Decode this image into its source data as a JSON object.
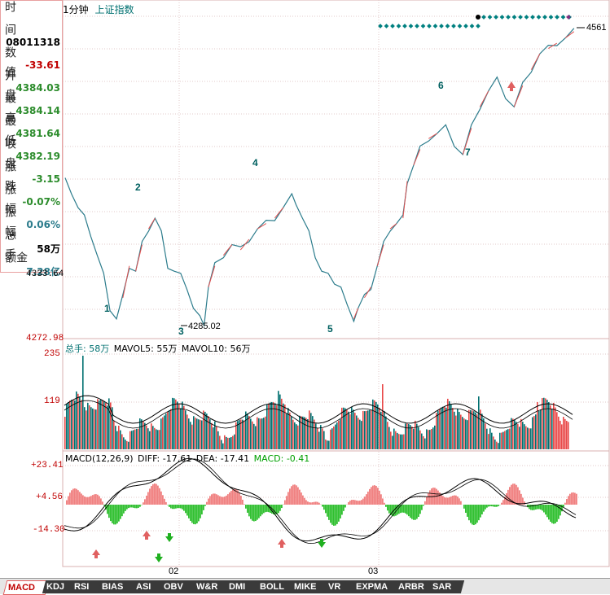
{
  "title": {
    "interval": "1分钟",
    "index_name": "上证指数"
  },
  "info_panel": {
    "rows": [
      {
        "label": "时",
        "value": ""
      },
      {
        "label": "间",
        "value": "08011318"
      },
      {
        "label": "数值",
        "value": "-33.61"
      },
      {
        "label": "开盘",
        "value": "4384.03"
      },
      {
        "label": "最高",
        "value": "4384.14"
      },
      {
        "label": "最低",
        "value": "4381.64"
      },
      {
        "label": "收盘",
        "value": "4382.19"
      },
      {
        "label": "涨跌",
        "value": "-3.15"
      },
      {
        "label": "涨幅",
        "value": "-0.07%"
      },
      {
        "label": "振幅",
        "value": "0.06%"
      },
      {
        "label": "总手",
        "value": "58万"
      },
      {
        "label": "金额",
        "value": "7.28亿"
      }
    ]
  },
  "price_axis": {
    "labels": [
      "4333.64",
      "4272.98"
    ],
    "low_label": "4285.02",
    "high_label": "4561"
  },
  "wave_labels": [
    "1",
    "2",
    "3",
    "4",
    "5",
    "6",
    "7"
  ],
  "volume_header": {
    "total": "总手: 58万",
    "mavol5": "MAVOL5: 55万",
    "mavol10": "MAVOL10: 56万"
  },
  "volume_axis": [
    "235",
    "119"
  ],
  "macd_header": {
    "name": "MACD(12,26,9)",
    "diff": "DIFF: -17.61",
    "dea": "DEA: -17.41",
    "macd": "MACD: -0.41"
  },
  "macd_axis": [
    "+23.41",
    "+4.56",
    "-14.30"
  ],
  "date_labels": [
    "02",
    "03"
  ],
  "tabs": [
    "MACD",
    "KDJ",
    "RSI",
    "BIAS",
    "ASI",
    "OBV",
    "W&R",
    "DMI",
    "BOLL",
    "MIKE",
    "VR",
    "EXPMA",
    "ARBR",
    "SAR"
  ],
  "colors": {
    "up": "#e84848",
    "down": "#007070",
    "price_line": "#2c7c8c",
    "grid": "#d8b0b0",
    "macd_up": "#f08080",
    "macd_down": "#30c030"
  },
  "chart_data": {
    "type": "line",
    "title": "上证指数 1分钟",
    "price_series": [
      [
        0,
        4420
      ],
      [
        3,
        4410
      ],
      [
        6,
        4395
      ],
      [
        9,
        4385
      ],
      [
        12,
        4370
      ],
      [
        15,
        4350
      ],
      [
        18,
        4330
      ],
      [
        21,
        4300
      ],
      [
        24,
        4290
      ],
      [
        27,
        4310
      ],
      [
        30,
        4340
      ],
      [
        33,
        4335
      ],
      [
        36,
        4360
      ],
      [
        39,
        4375
      ],
      [
        42,
        4385
      ],
      [
        45,
        4370
      ],
      [
        48,
        4340
      ],
      [
        51,
        4335
      ],
      [
        54,
        4330
      ],
      [
        57,
        4320
      ],
      [
        60,
        4300
      ],
      [
        63,
        4290
      ],
      [
        65,
        4286
      ],
      [
        67,
        4320
      ],
      [
        70,
        4340
      ],
      [
        74,
        4350
      ],
      [
        78,
        4360
      ],
      [
        82,
        4355
      ],
      [
        86,
        4365
      ],
      [
        90,
        4375
      ],
      [
        94,
        4380
      ],
      [
        98,
        4385
      ],
      [
        102,
        4395
      ],
      [
        106,
        4405
      ],
      [
        108,
        4400
      ],
      [
        111,
        4385
      ],
      [
        114,
        4370
      ],
      [
        117,
        4350
      ],
      [
        120,
        4335
      ],
      [
        123,
        4330
      ],
      [
        126,
        4325
      ],
      [
        129,
        4320
      ],
      [
        132,
        4300
      ],
      [
        135,
        4290
      ],
      [
        137,
        4300
      ],
      [
        140,
        4310
      ],
      [
        143,
        4320
      ],
      [
        146,
        4340
      ],
      [
        149,
        4360
      ],
      [
        152,
        4375
      ],
      [
        155,
        4380
      ],
      [
        158,
        4385
      ],
      [
        160,
        4420
      ],
      [
        163,
        4435
      ],
      [
        166,
        4450
      ],
      [
        170,
        4460
      ],
      [
        174,
        4465
      ],
      [
        178,
        4470
      ],
      [
        182,
        4455
      ],
      [
        186,
        4445
      ],
      [
        190,
        4470
      ],
      [
        194,
        4490
      ],
      [
        198,
        4505
      ],
      [
        202,
        4515
      ],
      [
        206,
        4500
      ],
      [
        210,
        4490
      ],
      [
        214,
        4510
      ],
      [
        218,
        4525
      ],
      [
        222,
        4540
      ],
      [
        226,
        4545
      ],
      [
        230,
        4550
      ],
      [
        234,
        4555
      ],
      [
        238,
        4561
      ]
    ],
    "wave_points": [
      {
        "label": "1"
      },
      {
        "label": "2"
      },
      {
        "label": "3",
        "value": 4285.02
      },
      {
        "label": "4"
      },
      {
        "label": "5"
      },
      {
        "label": "6"
      },
      {
        "label": "7"
      }
    ]
  }
}
